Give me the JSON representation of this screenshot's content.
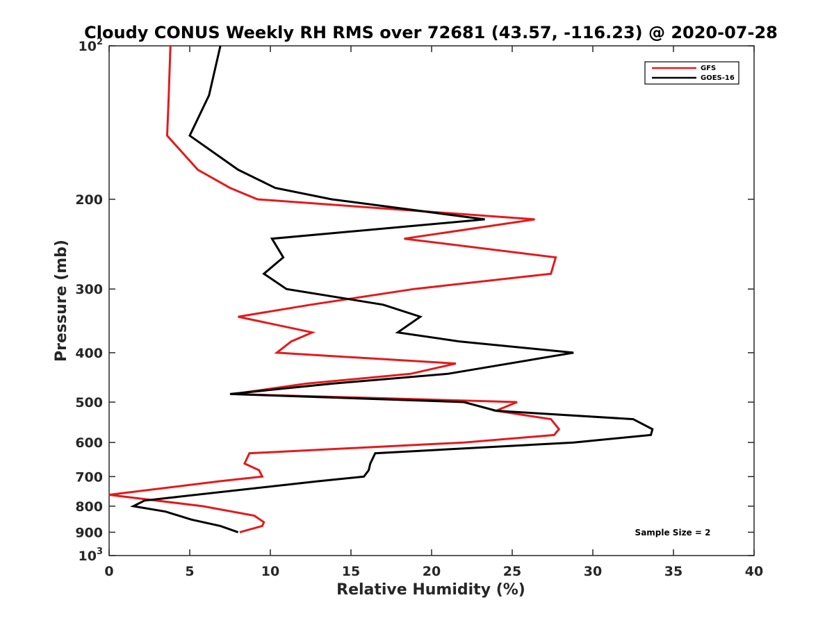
{
  "chart_data": {
    "type": "line",
    "title": "Cloudy CONUS Weekly RH RMS over 72681 (43.57, -116.23) @ 2020-07-28",
    "xlabel": "Relative Humidity (%)",
    "ylabel": "Pressure (mb)",
    "xlim": [
      0,
      40
    ],
    "ylim": [
      100,
      1000
    ],
    "yscale": "log",
    "y_reversed": true,
    "grid": false,
    "legend_position": "top-right",
    "x_ticks": [
      {
        "value": 0,
        "label": "0"
      },
      {
        "value": 5,
        "label": "5"
      },
      {
        "value": 10,
        "label": "10"
      },
      {
        "value": 15,
        "label": "15"
      },
      {
        "value": 20,
        "label": "20"
      },
      {
        "value": 25,
        "label": "25"
      },
      {
        "value": 30,
        "label": "30"
      },
      {
        "value": 35,
        "label": "35"
      },
      {
        "value": 40,
        "label": "40"
      }
    ],
    "y_ticks": [
      {
        "value": 100,
        "base": "10",
        "exp": "2"
      },
      {
        "value": 200,
        "base": "200",
        "exp": ""
      },
      {
        "value": 300,
        "base": "300",
        "exp": ""
      },
      {
        "value": 400,
        "base": "400",
        "exp": ""
      },
      {
        "value": 500,
        "base": "500",
        "exp": ""
      },
      {
        "value": 600,
        "base": "600",
        "exp": ""
      },
      {
        "value": 700,
        "base": "700",
        "exp": ""
      },
      {
        "value": 800,
        "base": "800",
        "exp": ""
      },
      {
        "value": 900,
        "base": "900",
        "exp": ""
      },
      {
        "value": 1000,
        "base": "10",
        "exp": "3"
      }
    ],
    "series": [
      {
        "name": "GFS",
        "color": "#e31a1c",
        "points": [
          [
            3.8,
            100
          ],
          [
            3.7,
            125
          ],
          [
            3.6,
            150
          ],
          [
            5.5,
            175
          ],
          [
            7.5,
            190
          ],
          [
            9.2,
            200
          ],
          [
            26.4,
            219
          ],
          [
            18.3,
            239
          ],
          [
            27.7,
            260
          ],
          [
            27.4,
            280
          ],
          [
            18.9,
            300
          ],
          [
            12.5,
            322
          ],
          [
            8.0,
            340
          ],
          [
            12.6,
            365
          ],
          [
            11.3,
            380
          ],
          [
            10.4,
            400
          ],
          [
            21.5,
            420
          ],
          [
            18.7,
            440
          ],
          [
            12.2,
            460
          ],
          [
            7.7,
            482
          ],
          [
            25.3,
            500
          ],
          [
            24.0,
            520
          ],
          [
            27.4,
            540
          ],
          [
            27.9,
            565
          ],
          [
            27.6,
            580
          ],
          [
            22.0,
            600
          ],
          [
            8.7,
            630
          ],
          [
            8.4,
            660
          ],
          [
            9.3,
            680
          ],
          [
            9.5,
            700
          ],
          [
            6.8,
            715
          ],
          [
            0.0,
            760
          ],
          [
            5.8,
            800
          ],
          [
            9.0,
            835
          ],
          [
            9.6,
            860
          ],
          [
            9.5,
            875
          ],
          [
            8.1,
            900
          ]
        ]
      },
      {
        "name": "GOES-16",
        "color": "#000000",
        "points": [
          [
            6.9,
            100
          ],
          [
            6.2,
            125
          ],
          [
            5.0,
            150
          ],
          [
            8.0,
            175
          ],
          [
            10.3,
            190
          ],
          [
            13.8,
            200
          ],
          [
            23.3,
            219
          ],
          [
            10.1,
            239
          ],
          [
            10.8,
            260
          ],
          [
            9.6,
            280
          ],
          [
            11.0,
            300
          ],
          [
            17.0,
            322
          ],
          [
            19.3,
            340
          ],
          [
            17.9,
            365
          ],
          [
            21.7,
            380
          ],
          [
            28.8,
            400
          ],
          [
            21.0,
            440
          ],
          [
            13.8,
            460
          ],
          [
            7.5,
            482
          ],
          [
            22.0,
            500
          ],
          [
            24.0,
            520
          ],
          [
            32.5,
            540
          ],
          [
            33.7,
            565
          ],
          [
            33.6,
            580
          ],
          [
            28.8,
            600
          ],
          [
            16.5,
            630
          ],
          [
            16.2,
            660
          ],
          [
            16.1,
            680
          ],
          [
            15.8,
            700
          ],
          [
            12.9,
            715
          ],
          [
            2.2,
            780
          ],
          [
            1.5,
            800
          ],
          [
            3.5,
            820
          ],
          [
            5.1,
            850
          ],
          [
            6.9,
            875
          ],
          [
            8.0,
            900
          ]
        ]
      }
    ],
    "annotations": [
      {
        "text": "Sample Size = 2"
      }
    ]
  }
}
